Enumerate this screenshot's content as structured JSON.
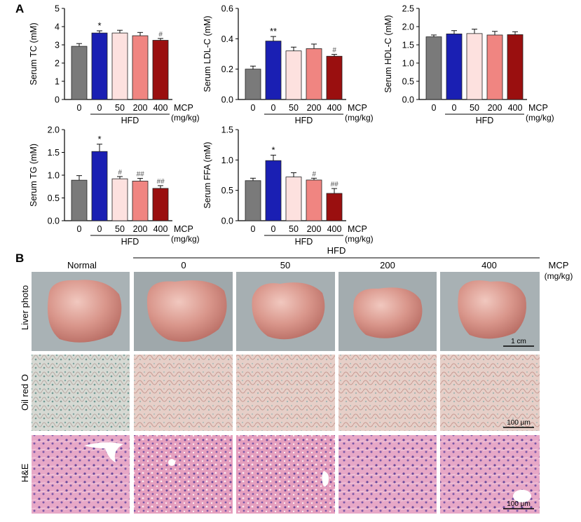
{
  "panel_labels": {
    "a": "A",
    "b": "B"
  },
  "bar_colors": [
    "#7a7a7a",
    "#1a1fb3",
    "#fde1df",
    "#f08581",
    "#9a0f0f"
  ],
  "x_ticks": [
    "0",
    "0",
    "50",
    "200",
    "400"
  ],
  "group_label": "HFD",
  "mcp_label": "MCP",
  "unit_label": "(mg/kg)",
  "chart_data": [
    {
      "type": "bar",
      "ylabel": "Serum TC (mM)",
      "ylim": [
        0,
        5
      ],
      "yticks": [
        "0",
        "1",
        "2",
        "3",
        "4",
        "5"
      ],
      "values": [
        2.92,
        3.65,
        3.65,
        3.5,
        3.25
      ],
      "errors": [
        0.15,
        0.12,
        0.15,
        0.18,
        0.1
      ],
      "annotations": [
        "",
        "*",
        "",
        "",
        "#"
      ]
    },
    {
      "type": "bar",
      "ylabel": "Serum LDL-C (mM)",
      "ylim": [
        0,
        0.6
      ],
      "yticks": [
        "0.0",
        "0.2",
        "0.4",
        "0.6"
      ],
      "values": [
        0.2,
        0.385,
        0.32,
        0.335,
        0.285
      ],
      "errors": [
        0.02,
        0.03,
        0.025,
        0.03,
        0.012
      ],
      "annotations": [
        "",
        "**",
        "",
        "",
        "#"
      ]
    },
    {
      "type": "bar",
      "ylabel": "Serum HDL-C (mM)",
      "ylim": [
        0,
        2.5
      ],
      "yticks": [
        "0.0",
        "0.5",
        "1.0",
        "1.5",
        "2.0",
        "2.5"
      ],
      "values": [
        1.72,
        1.8,
        1.81,
        1.77,
        1.78
      ],
      "errors": [
        0.05,
        0.09,
        0.12,
        0.1,
        0.08
      ],
      "annotations": [
        "",
        "",
        "",
        "",
        ""
      ]
    },
    {
      "type": "bar",
      "ylabel": "Serum TG (mM)",
      "ylim": [
        0,
        2.0
      ],
      "yticks": [
        "0.0",
        "0.5",
        "1.0",
        "1.5",
        "2.0"
      ],
      "values": [
        0.89,
        1.52,
        0.92,
        0.87,
        0.71
      ],
      "errors": [
        0.1,
        0.16,
        0.05,
        0.06,
        0.06
      ],
      "annotations": [
        "",
        "*",
        "#",
        "##",
        "##"
      ]
    },
    {
      "type": "bar",
      "ylabel": "Serum FFA (mM)",
      "ylim": [
        0,
        1.5
      ],
      "yticks": [
        "0.0",
        "0.5",
        "1.0",
        "1.5"
      ],
      "values": [
        0.66,
        0.99,
        0.72,
        0.67,
        0.45
      ],
      "errors": [
        0.04,
        0.09,
        0.07,
        0.03,
        0.08
      ],
      "annotations": [
        "",
        "*",
        "",
        "#",
        "##"
      ]
    }
  ],
  "panel_b": {
    "group_label": "HFD",
    "columns": [
      "Normal",
      "0",
      "50",
      "200",
      "400"
    ],
    "mcp_label": "MCP",
    "unit_label": "(mg/kg)",
    "rows": [
      "Liver photo",
      "Oil red O",
      "H&E"
    ],
    "scale_bars": [
      "1 cm",
      "100 μm",
      "100 μm"
    ]
  }
}
